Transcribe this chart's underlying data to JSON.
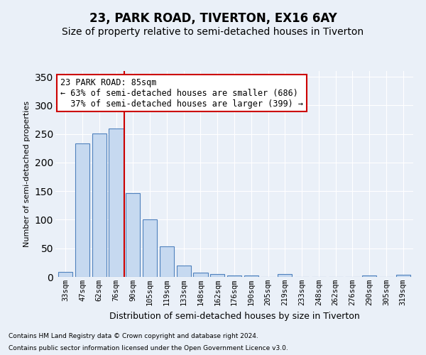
{
  "title": "23, PARK ROAD, TIVERTON, EX16 6AY",
  "subtitle": "Size of property relative to semi-detached houses in Tiverton",
  "xlabel": "Distribution of semi-detached houses by size in Tiverton",
  "ylabel": "Number of semi-detached properties",
  "footnote1": "Contains HM Land Registry data © Crown copyright and database right 2024.",
  "footnote2": "Contains public sector information licensed under the Open Government Licence v3.0.",
  "categories": [
    "33sqm",
    "47sqm",
    "62sqm",
    "76sqm",
    "90sqm",
    "105sqm",
    "119sqm",
    "133sqm",
    "148sqm",
    "162sqm",
    "176sqm",
    "190sqm",
    "205sqm",
    "219sqm",
    "233sqm",
    "248sqm",
    "262sqm",
    "276sqm",
    "290sqm",
    "305sqm",
    "319sqm"
  ],
  "values": [
    9,
    234,
    251,
    260,
    147,
    100,
    53,
    20,
    8,
    5,
    3,
    3,
    0,
    5,
    0,
    0,
    0,
    0,
    3,
    0,
    4
  ],
  "bar_color": "#c6d9f0",
  "bar_edge_color": "#4f81bd",
  "vline_x": 3.5,
  "vline_color": "#cc0000",
  "annotation_line1": "23 PARK ROAD: 85sqm",
  "annotation_line2": "← 63% of semi-detached houses are smaller (686)",
  "annotation_line3": "  37% of semi-detached houses are larger (399) →",
  "annotation_box_color": "#ffffff",
  "annotation_box_edge": "#cc0000",
  "ylim": [
    0,
    360
  ],
  "yticks": [
    0,
    50,
    100,
    150,
    200,
    250,
    300,
    350
  ],
  "bg_color": "#eaf0f8",
  "plot_bg_color": "#eaf0f8",
  "grid_color": "#ffffff",
  "title_fontsize": 12,
  "subtitle_fontsize": 10,
  "xlabel_fontsize": 9,
  "ylabel_fontsize": 8,
  "tick_fontsize": 7.5,
  "annotation_fontsize": 8.5,
  "footnote_fontsize": 6.5
}
